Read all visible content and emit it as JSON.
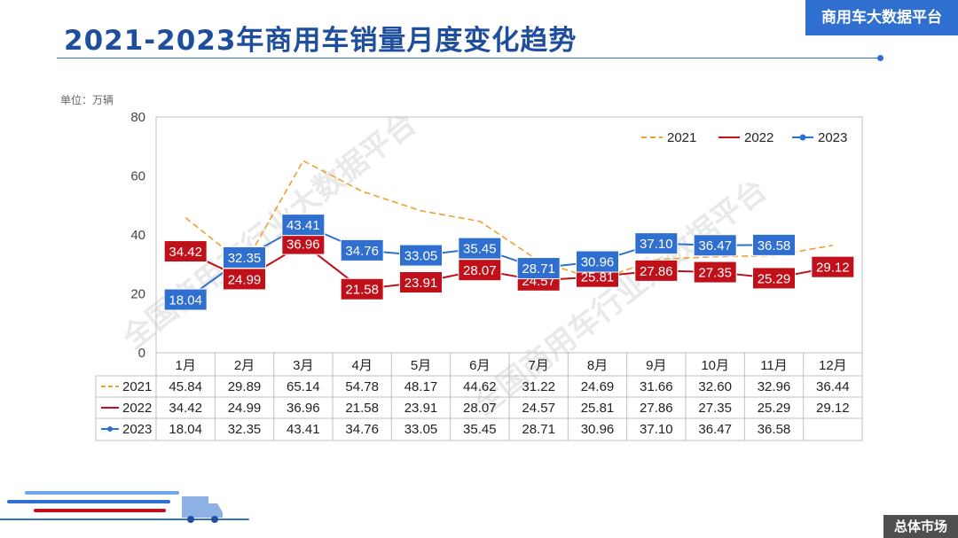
{
  "header": {
    "title": "2021-2023年商用车销量月度变化趋势",
    "brand": "商用车大数据平台",
    "unit": "单位：万辆"
  },
  "footer": {
    "tag": "总体市场"
  },
  "watermark": {
    "text": "全国商用车行业大数据平台"
  },
  "colors": {
    "accent": "#2f6fd0",
    "s2021": "#f0a030",
    "s2022": "#c0101a",
    "s2023": "#2f6fd0"
  },
  "chart_data": {
    "type": "line",
    "categories": [
      "1月",
      "2月",
      "3月",
      "4月",
      "5月",
      "6月",
      "7月",
      "8月",
      "9月",
      "10月",
      "11月",
      "12月"
    ],
    "ylim": [
      0,
      80
    ],
    "yticks": [
      0,
      20,
      40,
      60,
      80
    ],
    "legend": "top-right",
    "series": [
      {
        "name": "2021",
        "style": "dashed",
        "values": [
          45.84,
          29.89,
          65.14,
          54.78,
          48.17,
          44.62,
          31.22,
          24.69,
          31.66,
          32.6,
          32.96,
          36.44
        ],
        "labels": [
          "45.84",
          "29.89",
          "65.14",
          "54.78",
          "48.17",
          "44.62",
          "31.22",
          "24.69",
          "31.66",
          "32.60",
          "32.96",
          "36.44"
        ]
      },
      {
        "name": "2022",
        "style": "solid",
        "values": [
          34.42,
          24.99,
          36.96,
          21.58,
          23.91,
          28.07,
          24.57,
          25.81,
          27.86,
          27.35,
          25.29,
          29.12
        ],
        "labels": [
          "34.42",
          "24.99",
          "36.96",
          "21.58",
          "23.91",
          "28.07",
          "24.57",
          "25.81",
          "27.86",
          "27.35",
          "25.29",
          "29.12"
        ]
      },
      {
        "name": "2023",
        "style": "marker",
        "values": [
          18.04,
          32.35,
          43.41,
          34.76,
          33.05,
          35.45,
          28.71,
          30.96,
          37.1,
          36.47,
          36.58,
          null
        ],
        "labels": [
          "18.04",
          "32.35",
          "43.41",
          "34.76",
          "33.05",
          "35.45",
          "28.71",
          "30.96",
          "37.10",
          "36.47",
          "36.58",
          ""
        ]
      }
    ]
  }
}
